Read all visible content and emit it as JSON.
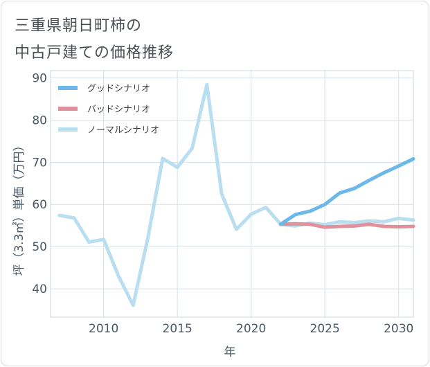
{
  "title_lines": [
    "三重県朝日町柿の",
    "中古戸建ての価格推移"
  ],
  "chart_data": {
    "type": "line",
    "title": "三重県朝日町柿の中古戸建ての価格推移",
    "xlabel": "年",
    "ylabel": "坪（3.3㎡）単価（万円）",
    "xlim": [
      2006.4,
      2031
    ],
    "ylim": [
      33.3,
      91.7
    ],
    "xticks": [
      2010,
      2015,
      2020,
      2025,
      2030
    ],
    "yticks": [
      40,
      50,
      60,
      70,
      80,
      90
    ],
    "grid": true,
    "legend_position": "top-left",
    "series": [
      {
        "name": "グッドシナリオ",
        "color": "#6cb8ea",
        "x": [
          2022,
          2023,
          2024,
          2025,
          2026,
          2027,
          2028,
          2029,
          2030,
          2031
        ],
        "y": [
          55.3,
          57.6,
          58.4,
          60.0,
          62.7,
          63.8,
          65.7,
          67.5,
          69.1,
          70.8
        ]
      },
      {
        "name": "バッドシナリオ",
        "color": "#e0909a",
        "x": [
          2022,
          2023,
          2024,
          2025,
          2026,
          2027,
          2028,
          2029,
          2030,
          2031
        ],
        "y": [
          55.3,
          55.4,
          55.3,
          54.6,
          54.8,
          54.9,
          55.3,
          54.8,
          54.7,
          54.8
        ]
      },
      {
        "name": "ノーマルシナリオ",
        "color": "#b9def0",
        "x": [
          2007,
          2008,
          2009,
          2010,
          2011,
          2012,
          2013,
          2014,
          2015,
          2016,
          2017,
          2018,
          2019,
          2020,
          2021,
          2022,
          2023,
          2024,
          2025,
          2026,
          2027,
          2028,
          2029,
          2030,
          2031
        ],
        "y": [
          57.4,
          56.8,
          51.1,
          51.7,
          43.1,
          36.1,
          52.1,
          70.9,
          68.8,
          73.3,
          88.4,
          62.5,
          54.1,
          57.7,
          59.3,
          55.3,
          54.9,
          55.6,
          55.2,
          55.9,
          55.7,
          56.1,
          55.9,
          56.7,
          56.3
        ]
      }
    ]
  }
}
